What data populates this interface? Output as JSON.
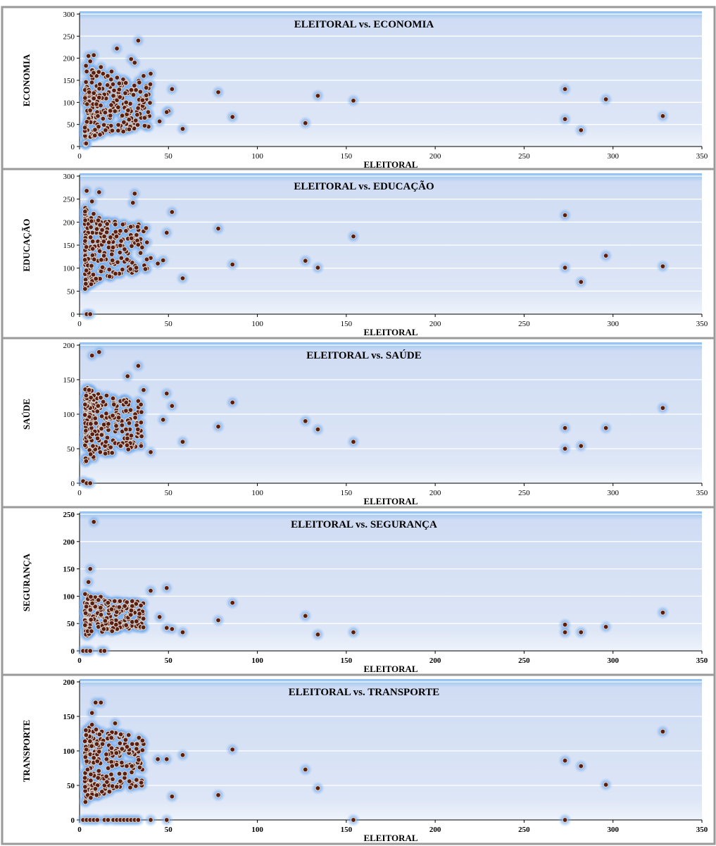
{
  "page_title": "",
  "colors": {
    "plot_band": "#dfe7f6",
    "plot_top": "#8ec0f3",
    "grid": "#ffffff",
    "glow": "#4a8fe6",
    "point_fill": "#5a1e10",
    "point_stroke": "#d9d2cc"
  },
  "chart_data": [
    {
      "type": "scatter",
      "title": "ELEITORAL vs. ECONOMIA",
      "xlabel": "ELEITORAL",
      "ylabel": "ECONOMIA",
      "xlim": [
        0,
        350
      ],
      "ylim": [
        0,
        300
      ],
      "xticks": [
        "0",
        "50",
        "100",
        "150",
        "200",
        "250",
        "300",
        "350"
      ],
      "yticks": [
        "0",
        "50",
        "100",
        "150",
        "200",
        "250",
        "300"
      ],
      "ytick_bold": false,
      "grid": true,
      "outliers": [
        [
          33,
          240
        ],
        [
          21,
          222
        ],
        [
          29,
          198
        ],
        [
          31,
          190
        ],
        [
          40,
          165
        ],
        [
          36,
          160
        ],
        [
          52,
          130
        ],
        [
          78,
          123
        ],
        [
          134,
          115
        ],
        [
          154,
          104
        ],
        [
          50,
          80
        ],
        [
          49,
          78
        ],
        [
          45,
          57
        ],
        [
          58,
          40
        ],
        [
          86,
          67
        ],
        [
          127,
          53
        ],
        [
          273,
          130
        ],
        [
          296,
          107
        ],
        [
          273,
          62
        ],
        [
          282,
          37
        ],
        [
          328,
          69
        ],
        [
          5,
          205
        ],
        [
          8,
          207
        ],
        [
          6,
          193
        ],
        [
          12,
          180
        ],
        [
          18,
          170
        ]
      ],
      "cluster": {
        "x": [
          3,
          40
        ],
        "y": [
          0,
          190
        ],
        "n": 240,
        "seed": 11
      }
    },
    {
      "type": "scatter",
      "title": "ELEITORAL vs. EDUCAÇÃO",
      "xlabel": "ELEITORAL",
      "ylabel": "EDUCAÇÃO",
      "xlim": [
        0,
        350
      ],
      "ylim": [
        0,
        300
      ],
      "xticks": [
        "0",
        "50",
        "100",
        "150",
        "200",
        "250",
        "300",
        "350"
      ],
      "yticks": [
        "0",
        "50",
        "100",
        "150",
        "200",
        "250",
        "300"
      ],
      "ytick_bold": false,
      "grid": true,
      "outliers": [
        [
          4,
          268
        ],
        [
          11,
          265
        ],
        [
          31,
          262
        ],
        [
          30,
          242
        ],
        [
          7,
          245
        ],
        [
          52,
          222
        ],
        [
          49,
          177
        ],
        [
          78,
          186
        ],
        [
          154,
          169
        ],
        [
          127,
          116
        ],
        [
          134,
          101
        ],
        [
          86,
          108
        ],
        [
          58,
          78
        ],
        [
          273,
          215
        ],
        [
          296,
          127
        ],
        [
          273,
          101
        ],
        [
          282,
          70
        ],
        [
          328,
          104
        ],
        [
          4,
          0
        ],
        [
          6,
          0
        ],
        [
          36,
          180
        ],
        [
          40,
          122
        ],
        [
          44,
          110
        ],
        [
          47,
          117
        ]
      ],
      "cluster": {
        "x": [
          3,
          38
        ],
        "y": [
          50,
          235
        ],
        "n": 240,
        "seed": 23
      }
    },
    {
      "type": "scatter",
      "title": "ELEITORAL vs. SAÚDE",
      "xlabel": "ELEITORAL",
      "ylabel": "SAÚDE",
      "xlim": [
        0,
        350
      ],
      "ylim": [
        0,
        200
      ],
      "xticks": [
        "0",
        "50",
        "100",
        "150",
        "200",
        "250",
        "300",
        "350"
      ],
      "yticks": [
        "0",
        "50",
        "100",
        "150",
        "200"
      ],
      "ytick_bold": false,
      "grid": true,
      "outliers": [
        [
          11,
          190
        ],
        [
          7,
          185
        ],
        [
          33,
          170
        ],
        [
          27,
          155
        ],
        [
          36,
          135
        ],
        [
          49,
          130
        ],
        [
          52,
          112
        ],
        [
          86,
          117
        ],
        [
          78,
          82
        ],
        [
          58,
          60
        ],
        [
          127,
          90
        ],
        [
          134,
          78
        ],
        [
          154,
          60
        ],
        [
          273,
          80
        ],
        [
          296,
          80
        ],
        [
          273,
          50
        ],
        [
          282,
          54
        ],
        [
          328,
          109
        ],
        [
          2,
          3
        ],
        [
          4,
          0
        ],
        [
          6,
          0
        ],
        [
          47,
          92
        ],
        [
          40,
          45
        ]
      ],
      "cluster": {
        "x": [
          3,
          36
        ],
        "y": [
          25,
          145
        ],
        "n": 240,
        "seed": 37
      }
    },
    {
      "type": "scatter",
      "title": "ELEITORAL vs. SEGURANÇA",
      "xlabel": "ELEITORAL",
      "ylabel": "SEGURANÇA",
      "xlim": [
        0,
        350
      ],
      "ylim": [
        0,
        250
      ],
      "xticks": [
        "0",
        "50",
        "100",
        "150",
        "200",
        "250",
        "300",
        "350"
      ],
      "yticks": [
        "0",
        "50",
        "100",
        "150",
        "200",
        "250"
      ],
      "ytick_bold": true,
      "grid": true,
      "outliers": [
        [
          8,
          236
        ],
        [
          6,
          150
        ],
        [
          5,
          126
        ],
        [
          49,
          115
        ],
        [
          40,
          110
        ],
        [
          86,
          88
        ],
        [
          45,
          62
        ],
        [
          78,
          56
        ],
        [
          127,
          64
        ],
        [
          134,
          30
        ],
        [
          154,
          34
        ],
        [
          58,
          34
        ],
        [
          52,
          40
        ],
        [
          49,
          42
        ],
        [
          273,
          48
        ],
        [
          296,
          44
        ],
        [
          273,
          34
        ],
        [
          282,
          34
        ],
        [
          328,
          70
        ],
        [
          2,
          0
        ],
        [
          4,
          0
        ],
        [
          6,
          0
        ],
        [
          12,
          0
        ],
        [
          14,
          0
        ]
      ],
      "cluster": {
        "x": [
          3,
          36
        ],
        "y": [
          22,
          110
        ],
        "n": 230,
        "seed": 53
      }
    },
    {
      "type": "scatter",
      "title": "ELEITORAL vs. TRANSPORTE",
      "xlabel": "ELEITORAL",
      "ylabel": "TRANSPORTE",
      "xlim": [
        0,
        350
      ],
      "ylim": [
        0,
        200
      ],
      "xticks": [
        "0",
        "50",
        "100",
        "150",
        "200",
        "250",
        "300",
        "350"
      ],
      "yticks": [
        "0",
        "50",
        "100",
        "150",
        "200"
      ],
      "ytick_bold": true,
      "grid": true,
      "outliers": [
        [
          9,
          170
        ],
        [
          12,
          170
        ],
        [
          7,
          155
        ],
        [
          20,
          140
        ],
        [
          36,
          110
        ],
        [
          44,
          88
        ],
        [
          49,
          88
        ],
        [
          58,
          94
        ],
        [
          86,
          102
        ],
        [
          52,
          34
        ],
        [
          78,
          36
        ],
        [
          127,
          73
        ],
        [
          134,
          46
        ],
        [
          154,
          0
        ],
        [
          49,
          0
        ],
        [
          40,
          0
        ],
        [
          273,
          86
        ],
        [
          282,
          78
        ],
        [
          296,
          51
        ],
        [
          328,
          128
        ],
        [
          273,
          0
        ],
        [
          2,
          0
        ],
        [
          4,
          0
        ],
        [
          6,
          0
        ],
        [
          8,
          0
        ],
        [
          10,
          0
        ],
        [
          14,
          0
        ],
        [
          16,
          0
        ],
        [
          19,
          0
        ],
        [
          21,
          0
        ],
        [
          23,
          0
        ],
        [
          25,
          0
        ],
        [
          27,
          0
        ],
        [
          29,
          0
        ],
        [
          31,
          0
        ],
        [
          33,
          0
        ]
      ],
      "cluster": {
        "x": [
          3,
          36
        ],
        "y": [
          20,
          150
        ],
        "n": 230,
        "seed": 71
      }
    }
  ]
}
